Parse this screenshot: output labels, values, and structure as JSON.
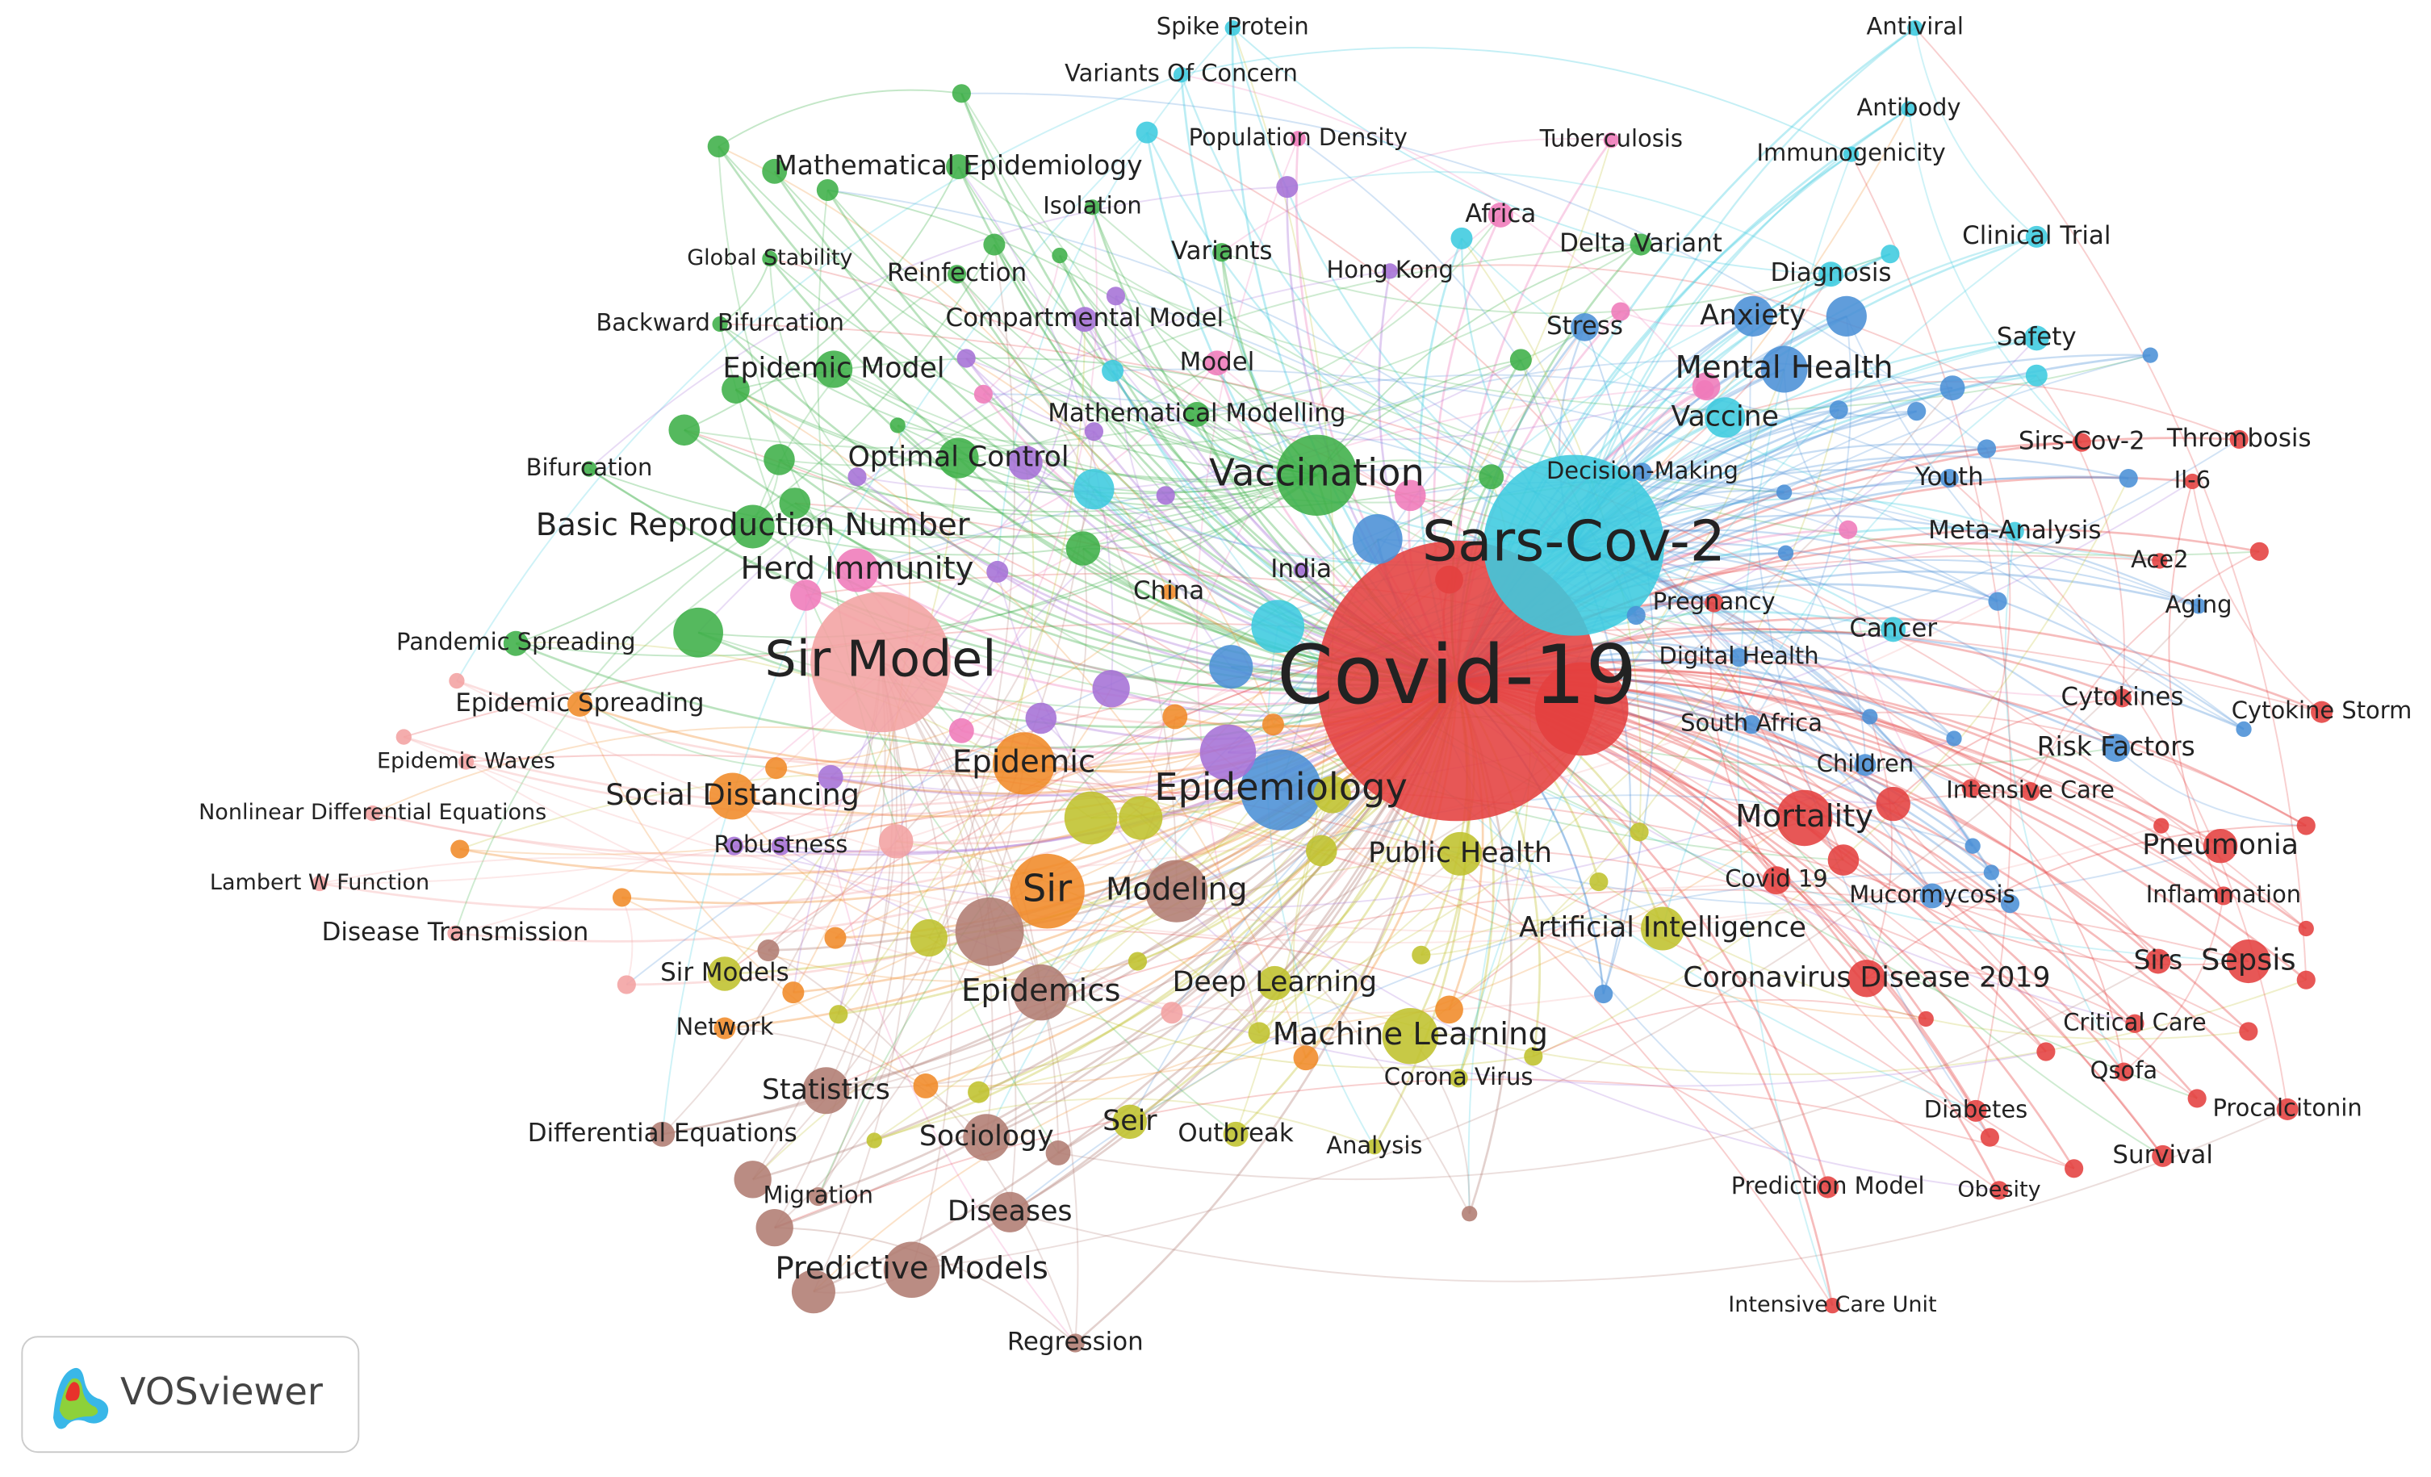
{
  "nodes": [
    "Covid-19",
    "Sars-Cov-2",
    "Sir Model",
    "Epidemiology",
    "Vaccination",
    "Sir",
    "Modeling",
    "Epidemic",
    "Social Distancing",
    "Basic Reproduction Number",
    "Herd Immunity",
    "Public Health",
    "Artificial Intelligence",
    "Machine Learning",
    "Deep Learning",
    "Mortality",
    "Epidemics",
    "Statistics",
    "Sociology",
    "Diseases",
    "Predictive Models",
    "Seir",
    "Outbreak",
    "Sir Models",
    "Network",
    "Differential Equations",
    "Migration",
    "Regression",
    "Analysis",
    "Corona Virus",
    "Coronavirus Disease 2019",
    "Covid 19",
    "Mucormycosis",
    "Sirs",
    "Sepsis",
    "Critical Care",
    "Qsofa",
    "Procalcitonin",
    "Diabetes",
    "Survival",
    "Obesity",
    "Prediction Model",
    "Intensive Care Unit",
    "Inflammation",
    "Pneumonia",
    "Intensive Care",
    "Children",
    "Risk Factors",
    "Cytokines",
    "Cytokine Storm",
    "Aging",
    "Ace2",
    "Meta-Analysis",
    "Il-6",
    "Thrombosis",
    "Sirs-Cov-2",
    "Youth",
    "Cancer",
    "South Africa",
    "Digital Health",
    "Pregnancy",
    "Decision-Making",
    "Vaccine",
    "Mental Health",
    "Anxiety",
    "Diagnosis",
    "Stress",
    "Safety",
    "Clinical Trial",
    "Immunogenicity",
    "Antibody",
    "Antiviral",
    "Tuberculosis",
    "Delta Variant",
    "Africa",
    "Hong Kong",
    "Spike Protein",
    "Variants Of Concern",
    "Population Density",
    "Isolation",
    "Mathematical Epidemiology",
    "Variants",
    "Global Stability",
    "Reinfection",
    "Backward Bifurcation",
    "Compartmental Model",
    "Model",
    "Epidemic Model",
    "Mathematical Modelling",
    "Optimal Control",
    "Bifurcation",
    "India",
    "China",
    "Pandemic Spreading",
    "Epidemic Spreading",
    "Epidemic Waves",
    "Nonlinear Differential Equations",
    "Robustness",
    "Lambert W Function",
    "Disease Transmission"
  ],
  "logo": {
    "text": "VOSviewer"
  }
}
